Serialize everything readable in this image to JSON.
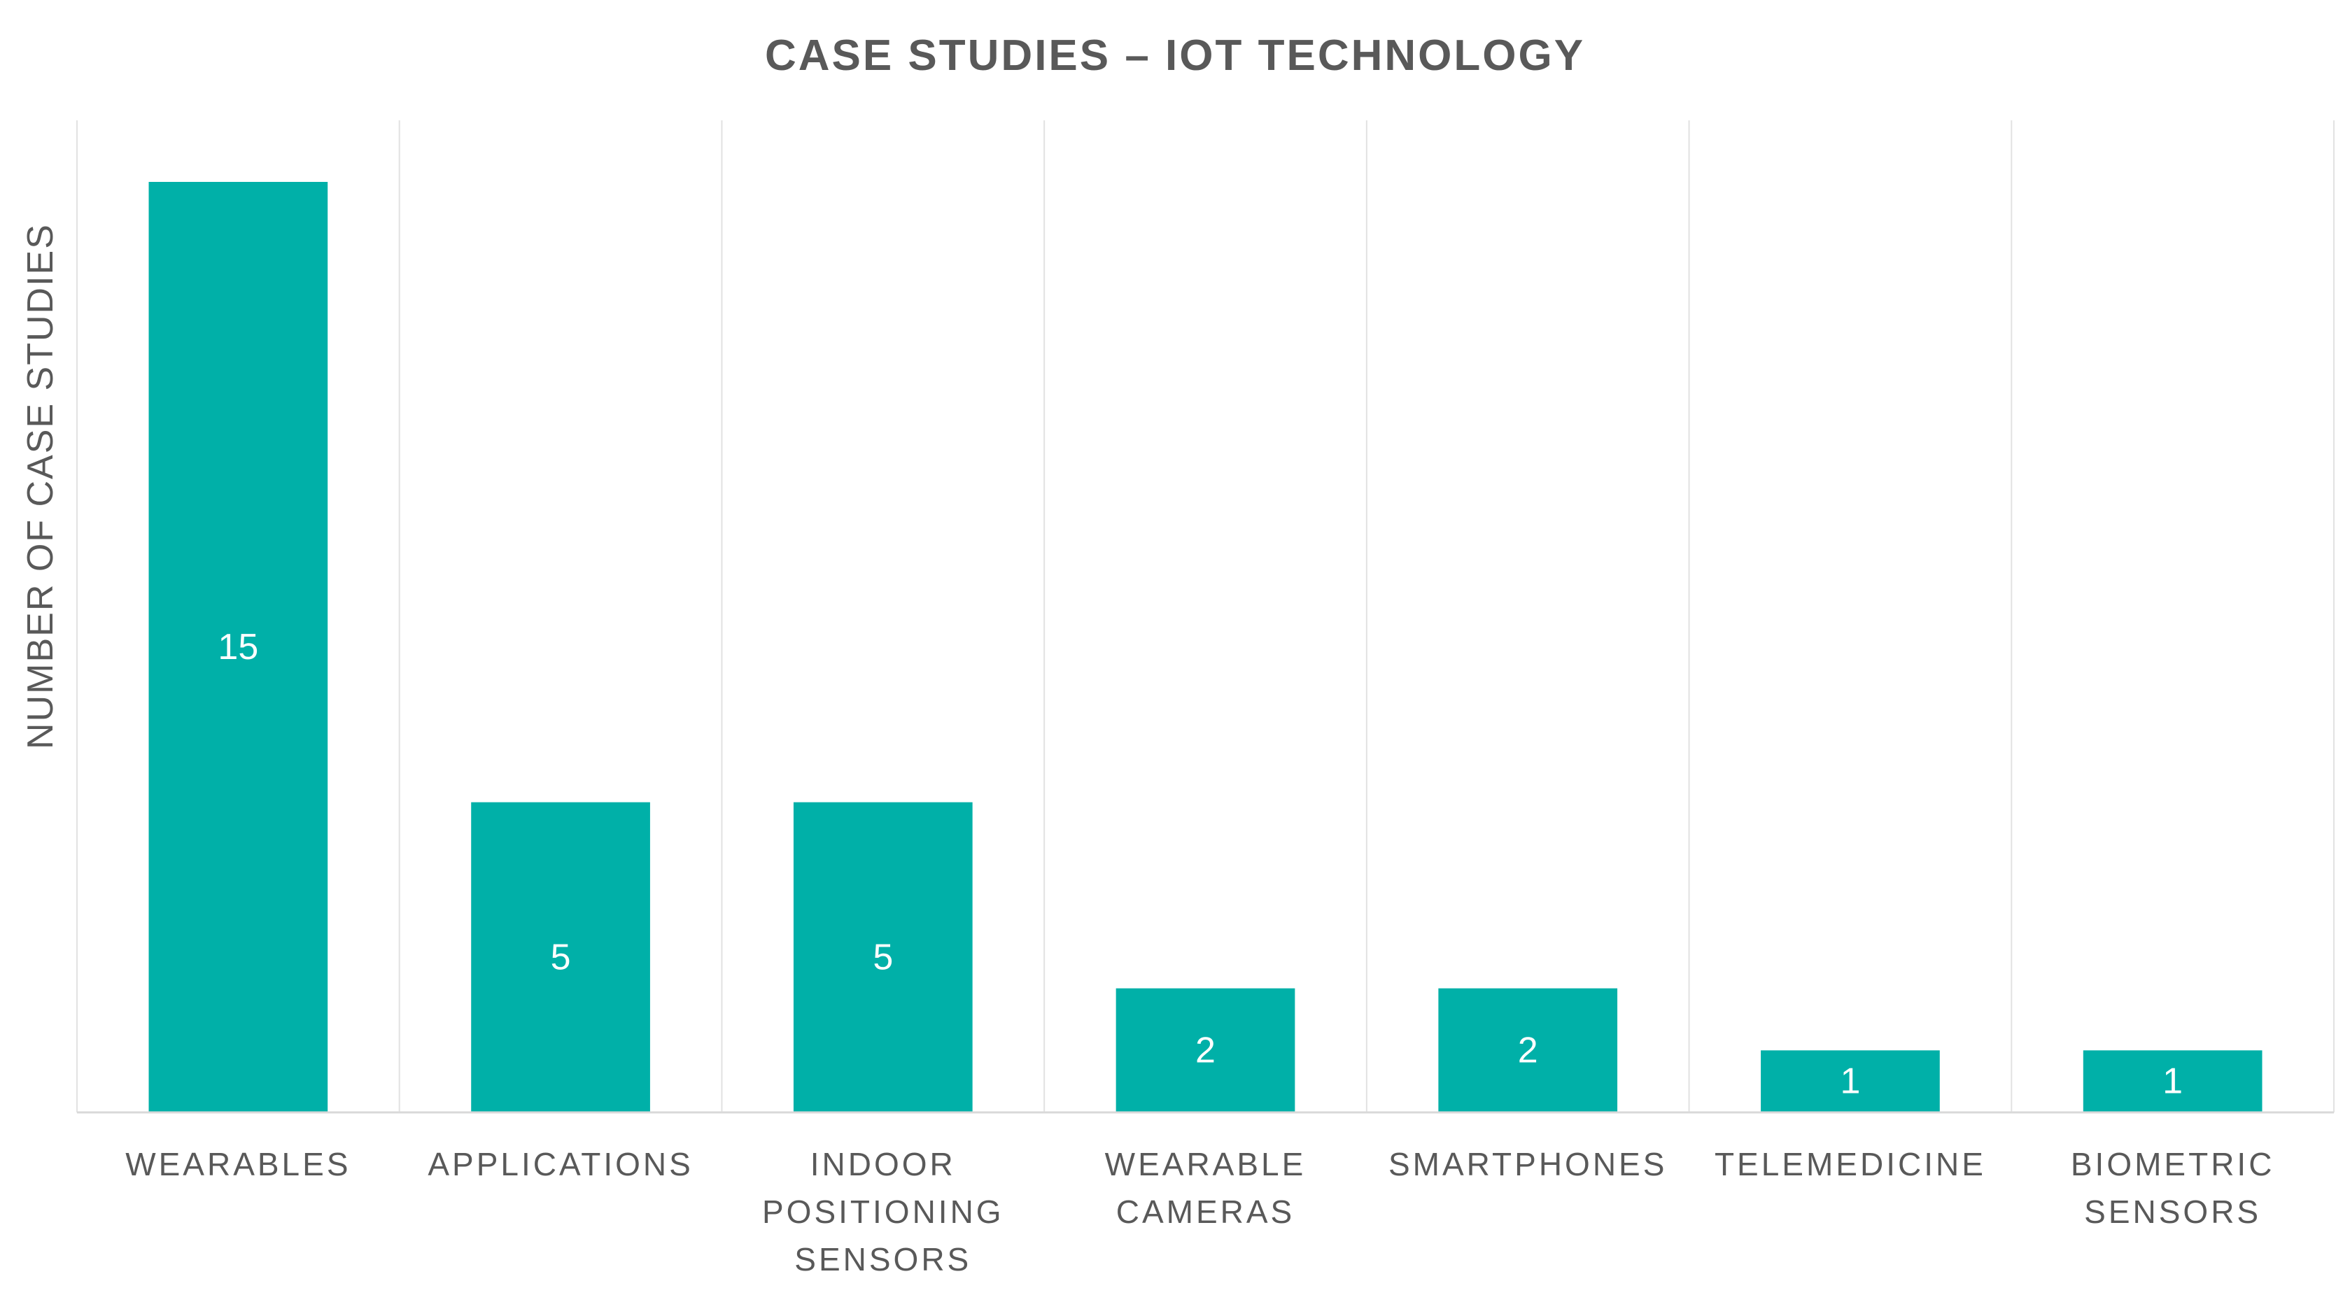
{
  "chart_data": {
    "type": "bar",
    "title": "CASE STUDIES – IOT TECHNOLOGY",
    "xlabel": "",
    "ylabel": "NUMBER OF CASE STUDIES",
    "categories": [
      "WEARABLES",
      "APPLICATIONS",
      "INDOOR POSITIONING SENSORS",
      "WEARABLE CAMERAS",
      "SMARTPHONES",
      "TELEMEDICINE",
      "BIOMETRIC SENSORS"
    ],
    "category_label_lines": [
      [
        "WEARABLES"
      ],
      [
        "APPLICATIONS"
      ],
      [
        "INDOOR",
        "POSITIONING",
        "SENSORS"
      ],
      [
        "WEARABLE",
        "CAMERAS"
      ],
      [
        "SMARTPHONES"
      ],
      [
        "TELEMEDICINE"
      ],
      [
        "BIOMETRIC",
        "SENSORS"
      ]
    ],
    "values": [
      15,
      5,
      5,
      2,
      2,
      1,
      1
    ],
    "ylim": [
      0,
      15
    ],
    "bar_color": "#00B0A8",
    "data_labels": true,
    "grid": "vertical category separators",
    "legend": "none"
  }
}
